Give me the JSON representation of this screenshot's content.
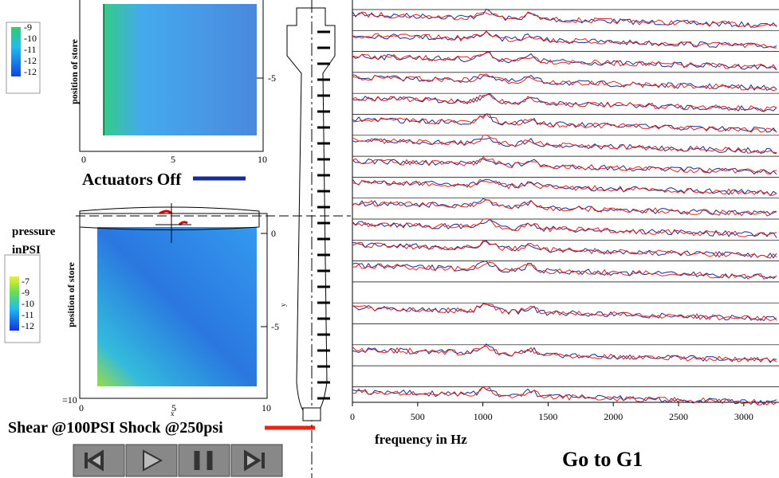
{
  "top_panel": {
    "colorbar_labels": [
      "-9",
      "-10",
      "-11",
      "-12",
      "-12"
    ],
    "y_axis_label": "position of store",
    "right_ticks": [
      "-5"
    ],
    "x_ticks": [
      "0",
      "5",
      "10"
    ],
    "caption": "Actuators Off"
  },
  "bottom_panel": {
    "colorbar_title": [
      "pressure",
      "inPSI"
    ],
    "colorbar_labels": [
      "-7",
      "-9",
      "-10",
      "-11",
      "-12"
    ],
    "y_axis_label": "position of store",
    "right_ticks": [
      "0",
      "-5"
    ],
    "right_axis_label": "y",
    "corner_label": "=10",
    "x_ticks": [
      "0",
      "5",
      "10"
    ],
    "x_axis_label": "x",
    "caption": "Shear @100PSI Shock @250psi"
  },
  "spectra": {
    "xlim": [
      0,
      3270
    ],
    "xticks": [
      0,
      500,
      1000,
      1500,
      2000,
      2500,
      3000
    ],
    "x_axis_label": "frequency in Hz"
  },
  "link": "Go to G1"
}
